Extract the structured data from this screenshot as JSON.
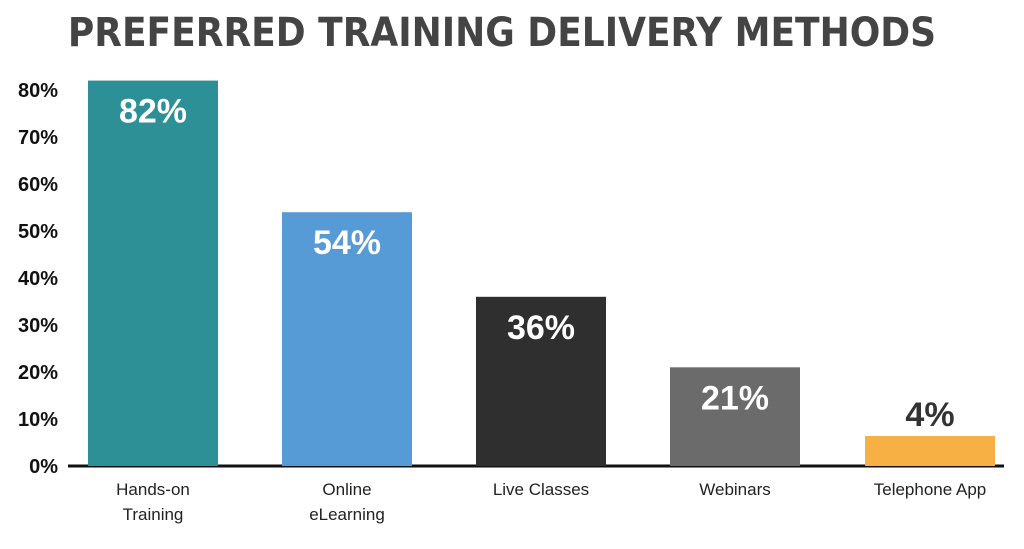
{
  "colors": {
    "title": "#444444",
    "axis": "#111111",
    "bar_label": "#ffffff",
    "bar_label_dark": "#333333",
    "tick_label": "#111111",
    "category_label": "#222222"
  },
  "chart_data": {
    "type": "bar",
    "title": "PREFERRED TRAINING DELIVERY METHODS",
    "xlabel": "",
    "ylabel": "",
    "ylim": [
      0,
      85
    ],
    "yticks": [
      0,
      10,
      20,
      30,
      40,
      50,
      60,
      70,
      80
    ],
    "ytick_labels": [
      "0%",
      "10%",
      "20%",
      "30%",
      "40%",
      "50%",
      "60%",
      "70%",
      "80%"
    ],
    "grid": false,
    "legend": "none",
    "categories": [
      [
        "Hands-on",
        "Training"
      ],
      [
        "Online",
        "eLearning"
      ],
      [
        "Live Classes"
      ],
      [
        "Webinars"
      ],
      [
        "Telephone App"
      ]
    ],
    "values": [
      82,
      54,
      36,
      21,
      4
    ],
    "value_labels": [
      "82%",
      "54%",
      "36%",
      "21%",
      "4%"
    ],
    "bar_colors": [
      "#2e9097",
      "#569ad6",
      "#2f2f2f",
      "#6b6b6b",
      "#f6b043"
    ]
  }
}
